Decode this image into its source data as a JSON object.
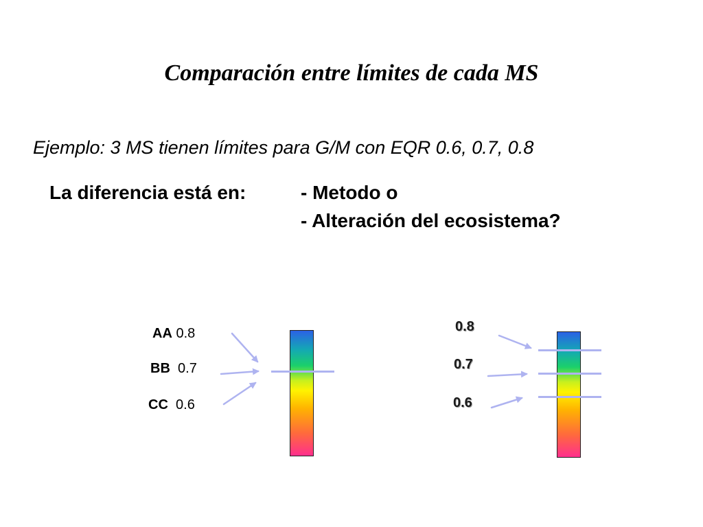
{
  "title": "Comparación entre límites de cada MS",
  "example": "Ejemplo: 3 MS tienen límites para G/M con EQR 0.6, 0.7, 0.8",
  "difference": {
    "label": "La diferencia está en:",
    "options": [
      "-  Metodo o",
      "-  Alteración del ecosistema?"
    ]
  },
  "left_diagram": {
    "items": [
      {
        "code": "AA",
        "value": "0.8"
      },
      {
        "code": "BB",
        "value": "0.7"
      },
      {
        "code": "CC",
        "value": "0.6"
      }
    ]
  },
  "right_diagram": {
    "values": [
      "0.8",
      "0.7",
      "0.6"
    ]
  },
  "colors": {
    "arrow": "#aeb3f0",
    "gradient": [
      "#2b62e5",
      "#14a8b4",
      "#1bd06a",
      "#c8f01e",
      "#fff200",
      "#ffb400",
      "#ff6a3c",
      "#ff2f8d"
    ]
  }
}
